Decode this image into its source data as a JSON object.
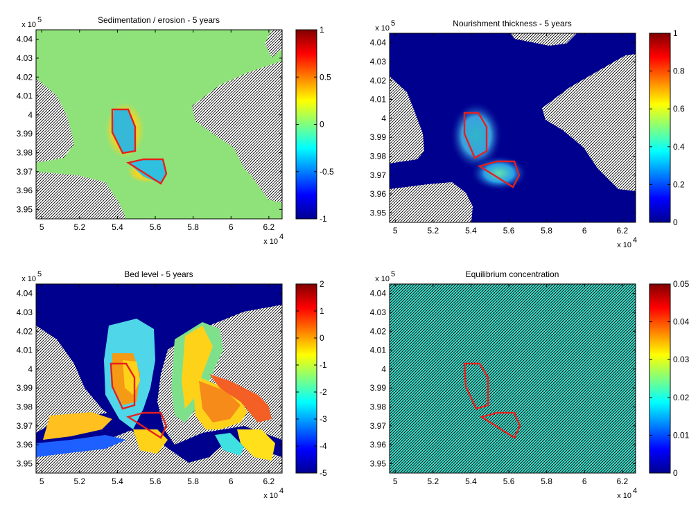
{
  "chart_data": [
    {
      "type": "heatmap",
      "title": "Sedimentation / erosion - 5 years",
      "x_ticks": [
        "5",
        "5.2",
        "5.4",
        "5.6",
        "5.8",
        "6",
        "6.2"
      ],
      "x_tick_values": [
        50000,
        52000,
        54000,
        56000,
        58000,
        60000,
        62000
      ],
      "x_exponent": "x 10",
      "x_exponent_power": "4",
      "y_ticks": [
        "4.04",
        "4.03",
        "4.02",
        "4.01",
        "4",
        "3.99",
        "3.98",
        "3.97",
        "3.96",
        "3.95"
      ],
      "y_tick_values": [
        404000,
        403000,
        402000,
        401000,
        400000,
        399000,
        398000,
        397000,
        396000,
        395000
      ],
      "y_exponent": "x 10",
      "y_exponent_power": "5",
      "xlim": [
        49700,
        62700
      ],
      "ylim": [
        394500,
        404500
      ],
      "colorbar_ticks": [
        "1",
        "0.5",
        "0",
        "-0.5",
        "-1"
      ],
      "clim": [
        -1,
        1
      ],
      "field": "sedimentation_erosion",
      "polygons_color": "#e5201d",
      "hatch": "land"
    },
    {
      "type": "heatmap",
      "title": "Nourishment thickness - 5 years",
      "x_ticks": [
        "5",
        "5.2",
        "5.4",
        "5.6",
        "5.8",
        "6",
        "6.2"
      ],
      "x_tick_values": [
        50000,
        52000,
        54000,
        56000,
        58000,
        60000,
        62000
      ],
      "x_exponent": "x 10",
      "x_exponent_power": "4",
      "y_ticks": [
        "4.04",
        "4.03",
        "4.02",
        "4.01",
        "4",
        "3.99",
        "3.98",
        "3.97",
        "3.96",
        "3.95"
      ],
      "y_tick_values": [
        404000,
        403000,
        402000,
        401000,
        400000,
        399000,
        398000,
        397000,
        396000,
        395000
      ],
      "y_exponent": "x 10",
      "y_exponent_power": "5",
      "xlim": [
        49700,
        62700
      ],
      "ylim": [
        394500,
        404500
      ],
      "colorbar_ticks": [
        "1",
        "0.8",
        "0.6",
        "0.4",
        "0.2",
        "0"
      ],
      "clim": [
        0,
        1
      ],
      "field": "nourishment_thickness",
      "polygons_color": "#e5201d",
      "hatch": "land"
    },
    {
      "type": "heatmap",
      "title": "Bed level - 5 years",
      "x_ticks": [
        "5",
        "5.2",
        "5.4",
        "5.6",
        "5.8",
        "6",
        "6.2"
      ],
      "x_tick_values": [
        50000,
        52000,
        54000,
        56000,
        58000,
        60000,
        62000
      ],
      "x_exponent": "x 10",
      "x_exponent_power": "4",
      "y_ticks": [
        "4.04",
        "4.03",
        "4.02",
        "4.01",
        "4",
        "3.99",
        "3.98",
        "3.97",
        "3.96",
        "3.95"
      ],
      "y_tick_values": [
        404000,
        403000,
        402000,
        401000,
        400000,
        399000,
        398000,
        397000,
        396000,
        395000
      ],
      "y_exponent": "x 10",
      "y_exponent_power": "5",
      "xlim": [
        49700,
        62700
      ],
      "ylim": [
        394500,
        404500
      ],
      "colorbar_ticks": [
        "2",
        "1",
        "0",
        "-1",
        "-2",
        "-3",
        "-4",
        "-5"
      ],
      "clim": [
        -5,
        2
      ],
      "field": "bed_level",
      "polygons_color": "#e5201d",
      "hatch": "land"
    },
    {
      "type": "heatmap",
      "title": "Equilibrium concentration",
      "x_ticks": [
        "5",
        "5.2",
        "5.4",
        "5.6",
        "5.8",
        "6",
        "6.2"
      ],
      "x_tick_values": [
        50000,
        52000,
        54000,
        56000,
        58000,
        60000,
        62000
      ],
      "x_exponent": "x 10",
      "x_exponent_power": "4",
      "y_ticks": [
        "4.04",
        "4.03",
        "4.02",
        "4.01",
        "4",
        "3.99",
        "3.98",
        "3.97",
        "3.96",
        "3.95"
      ],
      "y_tick_values": [
        404000,
        403000,
        402000,
        401000,
        400000,
        399000,
        398000,
        397000,
        396000,
        395000
      ],
      "y_exponent": "x 10",
      "y_exponent_power": "5",
      "xlim": [
        49700,
        62700
      ],
      "ylim": [
        394500,
        404500
      ],
      "colorbar_ticks": [
        "0.05",
        "0.04",
        "0.03",
        "0.02",
        "0.01",
        "0"
      ],
      "clim": [
        0,
        0.05
      ],
      "field": "uniform",
      "uniform_value": 0.022,
      "polygons_color": "#e5201d",
      "hatch": "all"
    }
  ]
}
